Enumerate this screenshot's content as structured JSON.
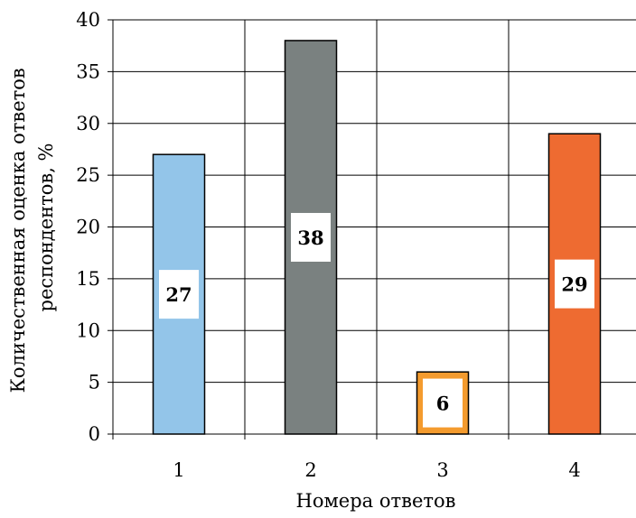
{
  "chart_data": {
    "type": "bar",
    "title": "",
    "categories": [
      "1",
      "2",
      "3",
      "4"
    ],
    "values": [
      27,
      38,
      6,
      29
    ],
    "data_labels": [
      "27",
      "38",
      "6",
      "29"
    ],
    "colors": [
      "#93c5e9",
      "#7a8180",
      "#f49b2e",
      "#ee6b31"
    ],
    "xlabel": "Номера ответов",
    "ylabel_lines": [
      "Количественная оценка ответов",
      "респондентов, %"
    ],
    "ylim": [
      0,
      40
    ],
    "yticks": [
      "0",
      "5",
      "10",
      "15",
      "20",
      "25",
      "30",
      "35",
      "40"
    ],
    "grid": true,
    "legend": "none"
  }
}
